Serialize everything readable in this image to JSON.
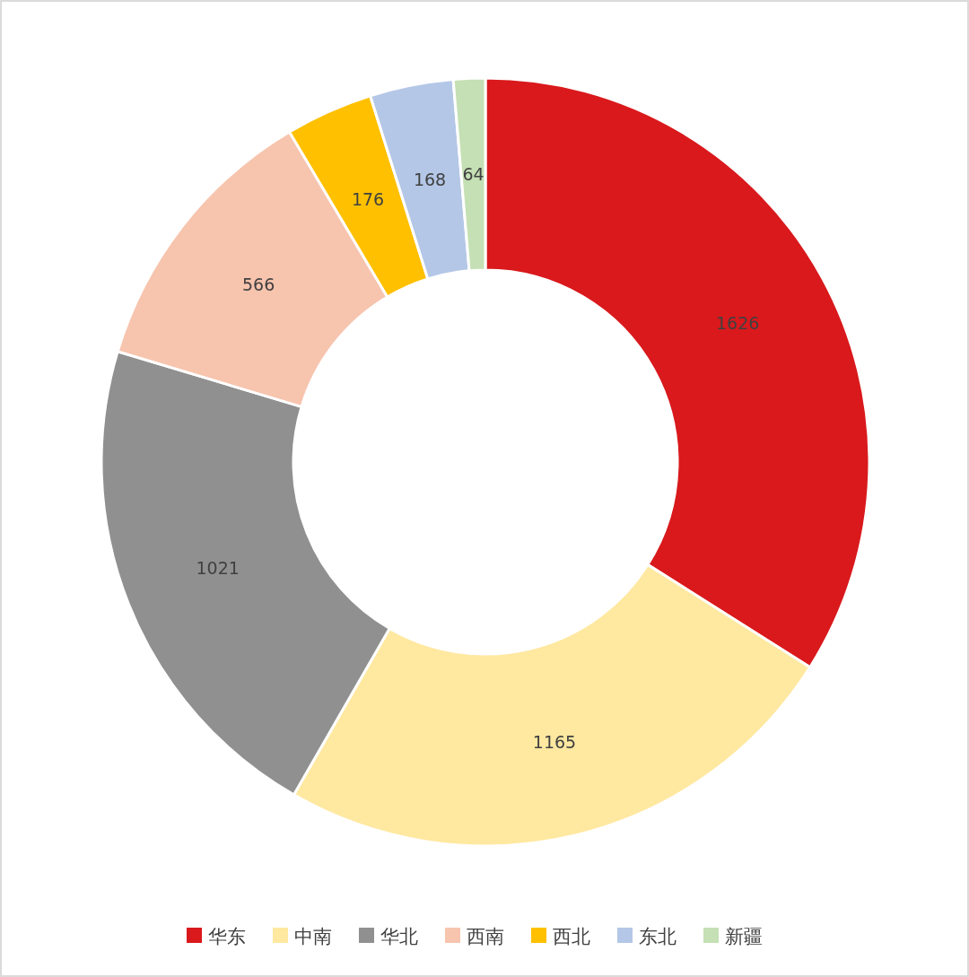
{
  "chart_data": {
    "type": "donut",
    "categories": [
      "华东",
      "中南",
      "华北",
      "西南",
      "西北",
      "东北",
      "新疆"
    ],
    "values": [
      1626,
      1165,
      1021,
      566,
      176,
      168,
      64
    ],
    "colors": [
      "#d9191c",
      "#ffe8a0",
      "#909090",
      "#f7c4ae",
      "#ffc000",
      "#b4c7e7",
      "#c5e0b4"
    ],
    "data_labels": true,
    "legend": "bottom"
  }
}
